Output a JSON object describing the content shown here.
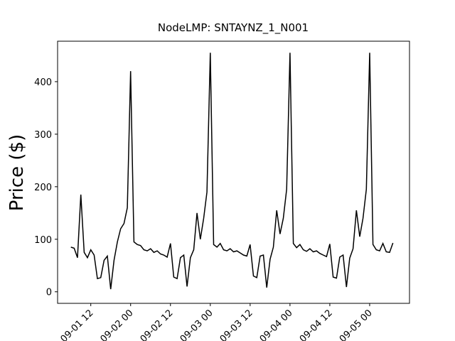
{
  "chart_data": {
    "type": "line",
    "title": "NodeLMP: SNTAYNZ_1_N001",
    "ylabel": "Price ($)",
    "x": [
      "09-01 06",
      "09-01 07",
      "09-01 08",
      "09-01 09",
      "09-01 10",
      "09-01 11",
      "09-01 12",
      "09-01 13",
      "09-01 14",
      "09-01 15",
      "09-01 16",
      "09-01 17",
      "09-01 18",
      "09-01 19",
      "09-01 20",
      "09-01 21",
      "09-01 22",
      "09-01 23",
      "09-02 00",
      "09-02 01",
      "09-02 02",
      "09-02 03",
      "09-02 04",
      "09-02 05",
      "09-02 06",
      "09-02 07",
      "09-02 08",
      "09-02 09",
      "09-02 10",
      "09-02 11",
      "09-02 12",
      "09-02 13",
      "09-02 14",
      "09-02 15",
      "09-02 16",
      "09-02 17",
      "09-02 18",
      "09-02 19",
      "09-02 20",
      "09-02 21",
      "09-02 22",
      "09-02 23",
      "09-03 00",
      "09-03 01",
      "09-03 02",
      "09-03 03",
      "09-03 04",
      "09-03 05",
      "09-03 06",
      "09-03 07",
      "09-03 08",
      "09-03 09",
      "09-03 10",
      "09-03 11",
      "09-03 12",
      "09-03 13",
      "09-03 14",
      "09-03 15",
      "09-03 16",
      "09-03 17",
      "09-03 18",
      "09-03 19",
      "09-03 20",
      "09-03 21",
      "09-03 22",
      "09-03 23",
      "09-04 00",
      "09-04 01",
      "09-04 02",
      "09-04 03",
      "09-04 04",
      "09-04 05",
      "09-04 06",
      "09-04 07",
      "09-04 08",
      "09-04 09",
      "09-04 10",
      "09-04 11",
      "09-04 12",
      "09-04 13",
      "09-04 14",
      "09-04 15",
      "09-04 16",
      "09-04 17",
      "09-04 18",
      "09-04 19",
      "09-04 20",
      "09-04 21",
      "09-04 22",
      "09-04 23",
      "09-05 00",
      "09-05 01",
      "09-05 02",
      "09-05 03",
      "09-05 04",
      "09-05 05",
      "09-05 06",
      "09-05 07"
    ],
    "series": [
      {
        "color": "#000000",
        "values": [
          85,
          83,
          65,
          185,
          75,
          65,
          80,
          70,
          25,
          27,
          60,
          68,
          5,
          60,
          95,
          120,
          130,
          160,
          420,
          95,
          90,
          88,
          80,
          78,
          82,
          75,
          78,
          72,
          70,
          66,
          92,
          28,
          25,
          65,
          70,
          10,
          65,
          80,
          150,
          100,
          140,
          190,
          455,
          90,
          85,
          92,
          80,
          78,
          82,
          76,
          78,
          74,
          70,
          68,
          90,
          30,
          27,
          68,
          70,
          8,
          62,
          85,
          155,
          110,
          140,
          195,
          455,
          92,
          84,
          90,
          80,
          77,
          82,
          76,
          78,
          73,
          70,
          67,
          91,
          28,
          26,
          66,
          70,
          9,
          64,
          82,
          155,
          105,
          140,
          195,
          455,
          90,
          80,
          78,
          92,
          76,
          75,
          93
        ]
      }
    ],
    "xlim": [
      "09-01 02",
      "09-05 12"
    ],
    "xticks": [
      "09-01 12",
      "09-02 00",
      "09-02 12",
      "09-03 00",
      "09-03 12",
      "09-04 00",
      "09-04 12",
      "09-05 00"
    ],
    "ylim": [
      -22,
      477
    ],
    "yticks": [
      0,
      100,
      200,
      300,
      400
    ]
  }
}
